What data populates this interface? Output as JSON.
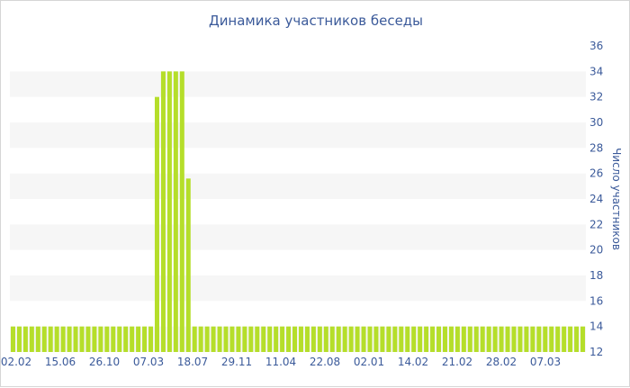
{
  "chart_data": {
    "type": "bar",
    "title": "Динамика участников беседы",
    "xlabel": "",
    "ylabel": "Число участников",
    "ylim": [
      12,
      36
    ],
    "y_ticks": [
      12,
      14,
      16,
      18,
      20,
      22,
      24,
      26,
      28,
      30,
      32,
      34,
      36
    ],
    "y_axis_side": "right",
    "x_tick_labels": [
      "02.02",
      "15.06",
      "26.10",
      "07.03",
      "18.07",
      "29.11",
      "11.04",
      "22.08",
      "02.01",
      "14.02",
      "21.02",
      "28.02",
      "07.03"
    ],
    "grid": "alternating horizontal bands",
    "bar_color": "#b5de2a",
    "series": [
      {
        "values": [
          14,
          14,
          14,
          14,
          14,
          14,
          14,
          14,
          14,
          14,
          14,
          14,
          14,
          14,
          14,
          14,
          14,
          14,
          14,
          14,
          14,
          14,
          14,
          32,
          34,
          34,
          34,
          34,
          25.6,
          14,
          14,
          14,
          14,
          14,
          14,
          14,
          14,
          14,
          14,
          14,
          14,
          14,
          14,
          14,
          14,
          14,
          14,
          14,
          14,
          14,
          14,
          14,
          14,
          14,
          14,
          14,
          14,
          14,
          14,
          14,
          14,
          14,
          14,
          14,
          14,
          14,
          14,
          14,
          14,
          14,
          14,
          14,
          14,
          14,
          14,
          14,
          14,
          14,
          14,
          14,
          14,
          14,
          14,
          14,
          14,
          14,
          14,
          14,
          14,
          14,
          14,
          14
        ]
      }
    ]
  }
}
